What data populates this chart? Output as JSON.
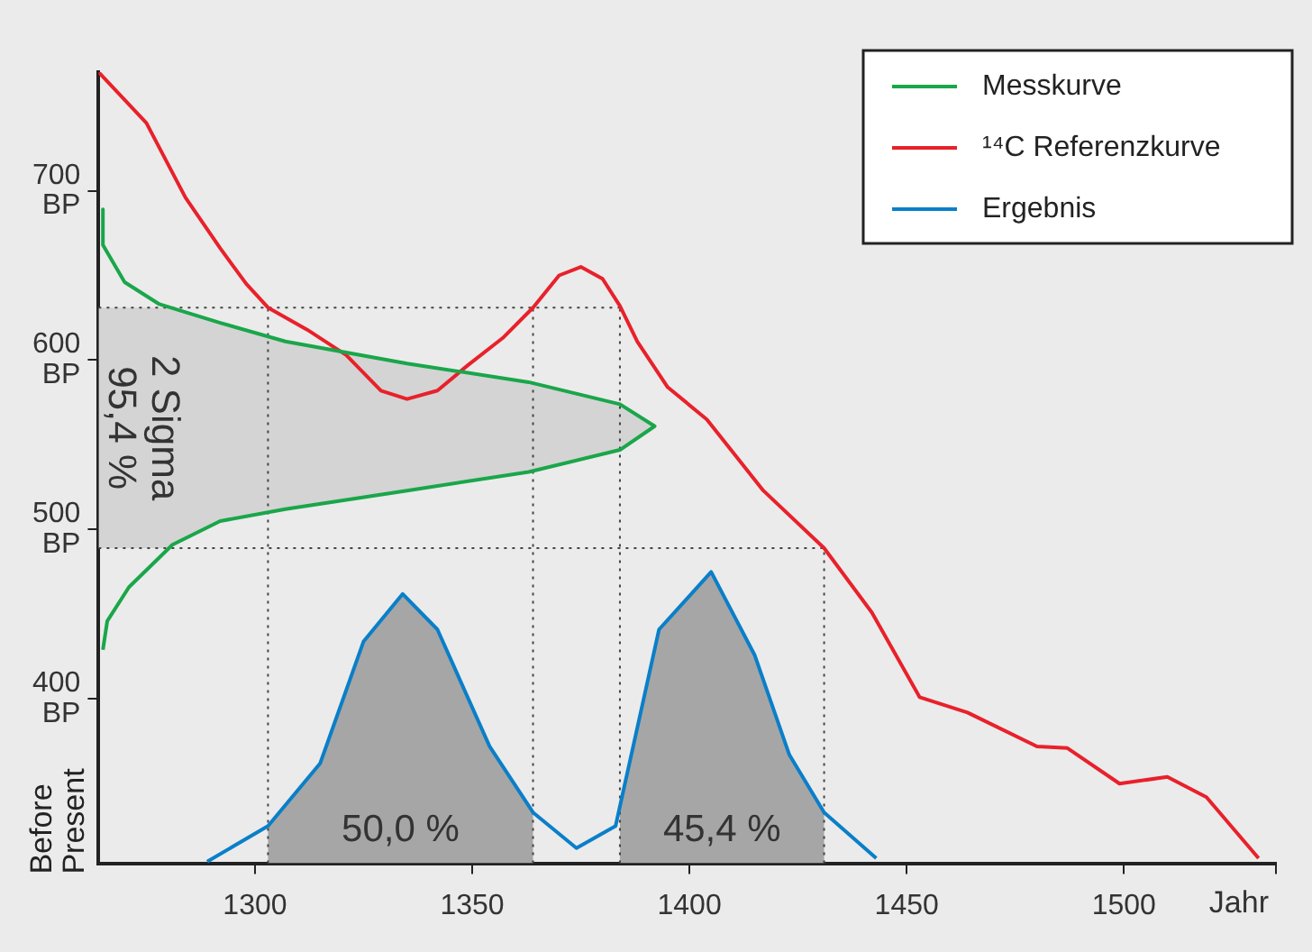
{
  "chart_data": {
    "type": "line",
    "xlabel": "Jahr",
    "ylabel": "Before Present",
    "xlim": [
      1264,
      1535
    ],
    "xticks": [
      1300,
      1350,
      1400,
      1450,
      1500,
      {
        "value": 1535,
        "label": null
      }
    ],
    "ylim": [
      303,
      770
    ],
    "yticks": [
      {
        "value": 400,
        "label": "400 BP"
      },
      {
        "value": 500,
        "label": "500 BP"
      },
      {
        "value": 600,
        "label": "600 BP"
      },
      {
        "value": 700,
        "label": "700 BP"
      }
    ],
    "grid": false,
    "legend": "top right",
    "marker": "none",
    "line_style": "solid",
    "series": [
      {
        "name": "Messkurve",
        "color": "#1aa64a",
        "x": [
          1265,
          1265,
          1270,
          1278,
          1292,
          1307,
          1335,
          1363,
          1384,
          1392,
          1384,
          1363,
          1335,
          1307,
          1292,
          1281,
          1271,
          1266,
          1265
        ],
        "values": [
          689,
          668,
          646,
          633,
          622,
          611,
          598,
          587,
          574,
          561,
          547,
          534,
          523,
          512,
          505,
          491,
          466,
          446,
          429
        ]
      },
      {
        "name": "¹⁴C Referenzkurve",
        "color": "#e8212b",
        "x": [
          1264,
          1275,
          1284,
          1292,
          1298,
          1303,
          1312,
          1321,
          1329,
          1335,
          1342,
          1349,
          1357,
          1364,
          1370,
          1375,
          1380,
          1384,
          1388,
          1395,
          1404,
          1417,
          1431,
          1442,
          1453,
          1464,
          1480,
          1487,
          1499,
          1510,
          1519,
          1531
        ],
        "values": [
          770,
          740,
          696,
          666,
          645,
          631,
          618,
          603,
          582,
          577,
          582,
          597,
          613,
          631,
          650,
          655,
          648,
          632,
          611,
          584,
          565,
          523,
          489,
          451,
          401,
          392,
          372,
          371,
          350,
          354,
          342,
          306
        ]
      },
      {
        "name": "Ergebnis",
        "color": "#0a7fc9",
        "x": [
          1289,
          1303,
          1315,
          1325,
          1334,
          1342,
          1354,
          1364,
          1374,
          1383,
          1393,
          1405,
          1415,
          1423,
          1431,
          1443
        ],
        "values": [
          304,
          325,
          362,
          434,
          462,
          441,
          372,
          333,
          312,
          325,
          441,
          475,
          426,
          367,
          333,
          306
        ]
      }
    ],
    "ref_lines": [
      {
        "axis": "y",
        "value": 631
      },
      {
        "axis": "y",
        "value": 489
      },
      {
        "axis": "x",
        "value": 1303
      },
      {
        "axis": "x",
        "value": 1364
      },
      {
        "axis": "x",
        "value": 1384
      },
      {
        "axis": "x",
        "value": 1431
      }
    ],
    "bands": [
      {
        "axis": "y",
        "from": 489,
        "to": 631,
        "label": "2 Sigma\n95,4 %",
        "color": "#d4d4d4"
      },
      {
        "axis": "x",
        "from": 1303,
        "to": 1364,
        "label": "50,0 %",
        "color": "#a6a6a6"
      },
      {
        "axis": "x",
        "from": 1384,
        "to": 1431,
        "label": "45,4 %",
        "color": "#a6a6a6"
      }
    ]
  }
}
